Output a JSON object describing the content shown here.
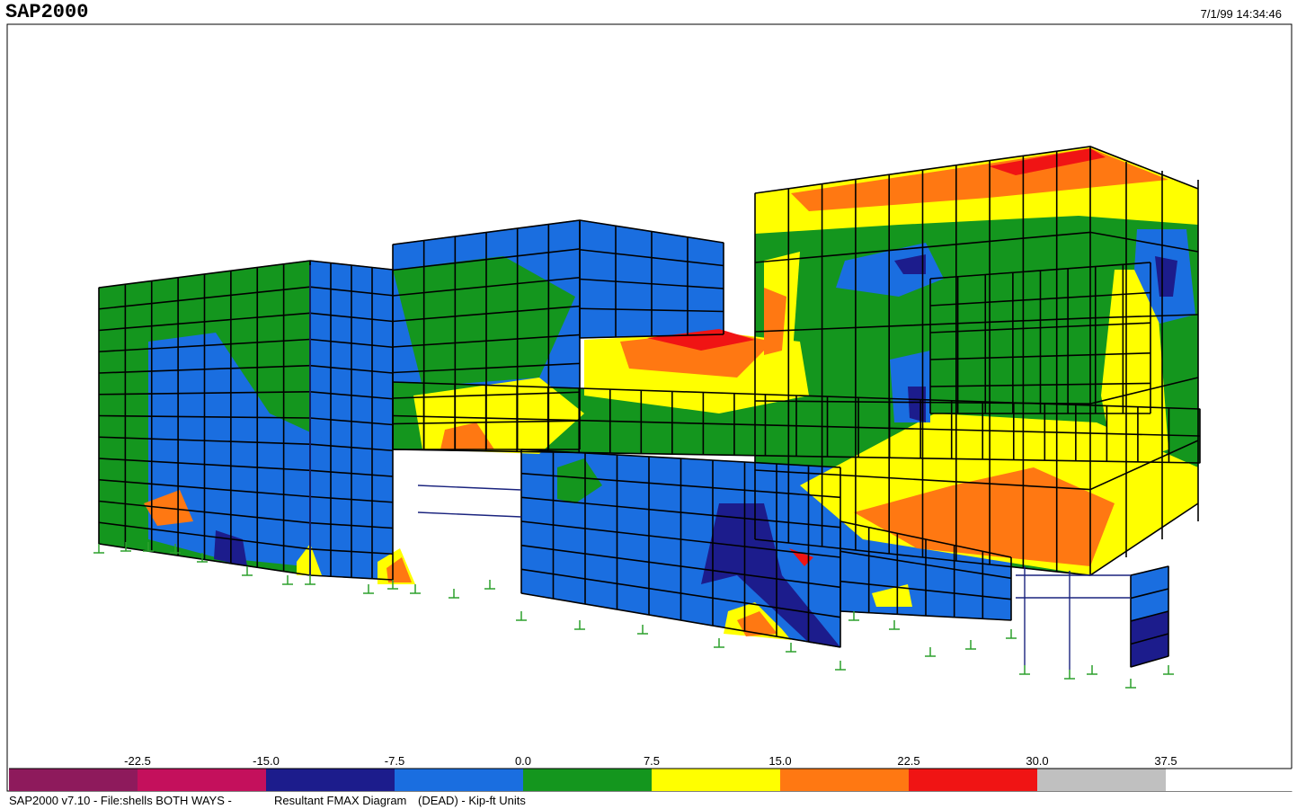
{
  "header": {
    "title": "SAP2000",
    "timestamp": "7/1/99 14:34:46"
  },
  "legend": {
    "labels": [
      "-22.5",
      "-15.0",
      "-7.5",
      "0.0",
      "7.5",
      "15.0",
      "22.5",
      "30.0",
      "37.5"
    ],
    "colors": [
      "#8e1a5c",
      "#c4105c",
      "#1c1c8c",
      "#1a6ee0",
      "#14961e",
      "#ffff00",
      "#ff7812",
      "#f01414",
      "#c0c0c0",
      "#ffffff"
    ]
  },
  "footer": {
    "file": "SAP2000 v7.10 - File:shells BOTH WAYS -",
    "diagram": "Resultant FMAX Diagram",
    "units": "(DEAD) - Kip-ft Units"
  }
}
